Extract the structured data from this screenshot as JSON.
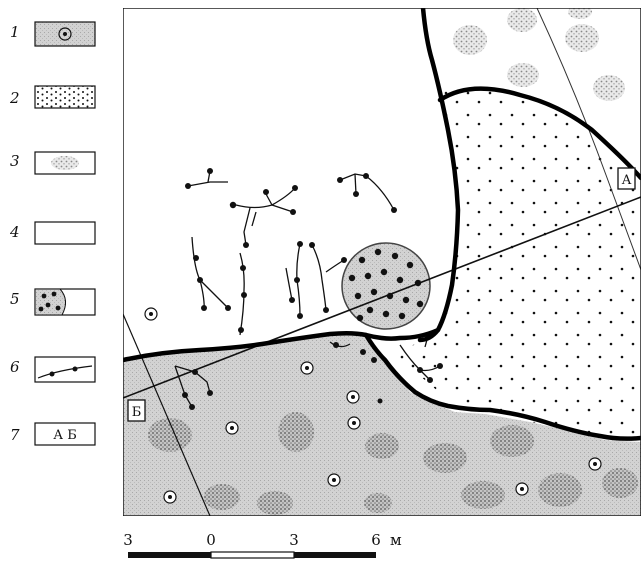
{
  "legend": [
    {
      "number": "1",
      "label": ""
    },
    {
      "number": "2",
      "label": ""
    },
    {
      "number": "3",
      "label": ""
    },
    {
      "number": "4",
      "label": ""
    },
    {
      "number": "5",
      "label": ""
    },
    {
      "number": "6",
      "label": ""
    },
    {
      "number": "7",
      "label": "А Б"
    }
  ],
  "profile": {
    "end_a": "А",
    "end_b": "Б"
  },
  "scale": {
    "ticks": [
      "3",
      "0",
      "3",
      "6"
    ],
    "unit": "м"
  },
  "colors": {
    "line": "#111111",
    "shaded_fill": "#d4d4d4",
    "background": "#ffffff"
  }
}
